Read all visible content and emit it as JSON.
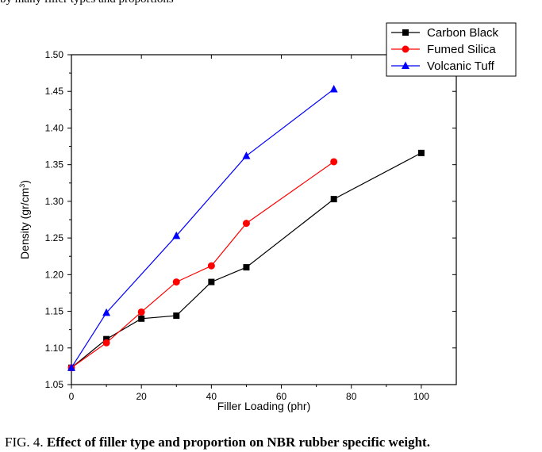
{
  "top_text": "by many filler types and proportions",
  "caption": {
    "label": "FIG. 4. ",
    "text": "Effect of filler type and proportion on NBR rubber specific weight."
  },
  "chart_data": {
    "type": "line",
    "xlabel": "Filler Loading (phr)",
    "ylabel_main": "Density (gr/cm",
    "ylabel_sup": "3",
    "ylabel_close": ")",
    "xlim": [
      0,
      110
    ],
    "ylim": [
      1.05,
      1.5
    ],
    "xticks": [
      0,
      20,
      40,
      60,
      80,
      100
    ],
    "yticks": [
      1.05,
      1.1,
      1.15,
      1.2,
      1.25,
      1.3,
      1.35,
      1.4,
      1.45,
      1.5
    ],
    "legend_position": "top-right",
    "series": [
      {
        "name": "Carbon Black",
        "color": "#000000",
        "marker": "square",
        "x": [
          0,
          10,
          20,
          30,
          40,
          50,
          75,
          100
        ],
        "y": [
          1.073,
          1.112,
          1.14,
          1.144,
          1.19,
          1.21,
          1.303,
          1.366
        ]
      },
      {
        "name": "Fumed Silica",
        "color": "#ff0000",
        "marker": "circle",
        "x": [
          0,
          10,
          20,
          30,
          40,
          50,
          75
        ],
        "y": [
          1.073,
          1.107,
          1.149,
          1.19,
          1.212,
          1.27,
          1.354
        ]
      },
      {
        "name": "Volcanic Tuff",
        "color": "#0000ff",
        "marker": "triangle",
        "x": [
          0,
          10,
          30,
          50,
          75
        ],
        "y": [
          1.073,
          1.148,
          1.253,
          1.362,
          1.453
        ]
      }
    ]
  }
}
